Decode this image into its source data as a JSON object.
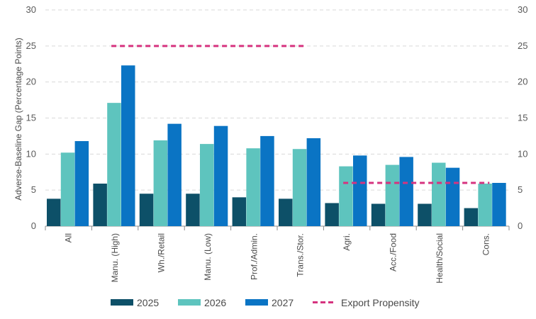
{
  "chart_data": {
    "type": "bar",
    "title": "",
    "xlabel": "",
    "ylabel": "Adverse-Baseline Gap (Percentage Points)",
    "ylim": [
      0,
      30
    ],
    "yticks": [
      0,
      5,
      10,
      15,
      20,
      25,
      30
    ],
    "grid": true,
    "legend_position": "bottom",
    "categories": [
      "All",
      "Manu. (High)",
      "Wh./Retail",
      "Manu. (Low)",
      "Prof./Admin.",
      "Trans./Stor.",
      "Agri.",
      "Acc./Food",
      "Health/Social",
      "Cons."
    ],
    "series": [
      {
        "name": "2025",
        "color": "#0d5068",
        "values": [
          3.8,
          5.9,
          4.5,
          4.5,
          4.0,
          3.8,
          3.2,
          3.1,
          3.1,
          2.5
        ]
      },
      {
        "name": "2026",
        "color": "#5ec4be",
        "values": [
          10.2,
          17.1,
          11.9,
          11.4,
          10.8,
          10.7,
          8.3,
          8.5,
          8.8,
          5.9
        ]
      },
      {
        "name": "2027",
        "color": "#0a74c4",
        "values": [
          11.8,
          22.3,
          14.2,
          13.9,
          12.5,
          12.2,
          9.8,
          9.6,
          8.1,
          6.0
        ]
      }
    ],
    "export_propensity": {
      "name": "Export Propensity",
      "color": "#d6337f",
      "segments": [
        {
          "from_category": 1,
          "to_category": 5,
          "value": 25
        },
        {
          "from_category": 6,
          "to_category": 9,
          "value": 6
        }
      ]
    }
  }
}
